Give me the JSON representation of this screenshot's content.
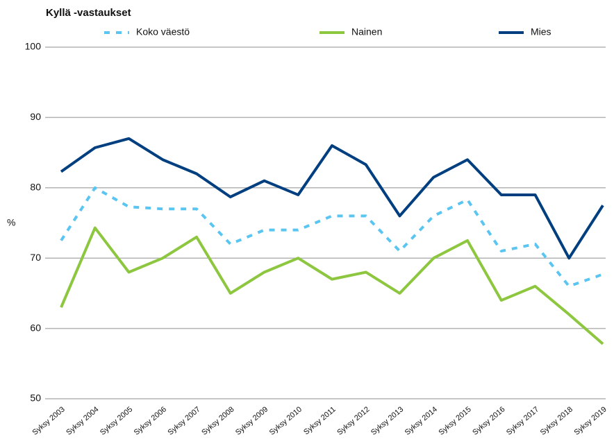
{
  "chart_data": {
    "type": "line",
    "title": "Kyllä -vastaukset",
    "y_label": "%",
    "categories": [
      "Syksy 2003",
      "Syksy 2004",
      "Syksy 2005",
      "Syksy 2006",
      "Syksy 2007",
      "Syksy 2008",
      "Syksy 2009",
      "Syksy 2010",
      "Syksy 2011",
      "Syksy 2012",
      "Syksy 2013",
      "Syksy 2014",
      "Syksy 2015",
      "Syksy 2016",
      "Syksy 2017",
      "Syksy 2018",
      "Syksy 2019"
    ],
    "series": [
      {
        "name": "Koko väestö",
        "color": "#5bc5f2",
        "dashed": true,
        "values": [
          72.5,
          80,
          77.3,
          77,
          77,
          72,
          74,
          74,
          76,
          76,
          71,
          76,
          78.3,
          71,
          72,
          66,
          67.7
        ]
      },
      {
        "name": "Nainen",
        "color": "#8dc63f",
        "dashed": false,
        "values": [
          63,
          74.3,
          68,
          70,
          73,
          65,
          68,
          70,
          67,
          68,
          65,
          70,
          72.5,
          64,
          66,
          62,
          57.8
        ]
      },
      {
        "name": "Mies",
        "color": "#003f7f",
        "dashed": false,
        "values": [
          82.3,
          85.7,
          87,
          84,
          82,
          78.7,
          81,
          79,
          86,
          83.3,
          76,
          81.5,
          84,
          79,
          79,
          70,
          77.5
        ]
      }
    ],
    "ylim": [
      50,
      100
    ],
    "yticks": [
      50,
      60,
      70,
      80,
      90,
      100
    ],
    "grid": true
  }
}
